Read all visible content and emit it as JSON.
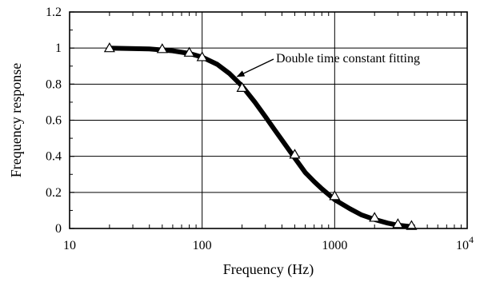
{
  "chart_data": {
    "type": "line",
    "xlabel": "Frequency (Hz)",
    "ylabel": "Frequency response",
    "x_scale": "log",
    "xlim": [
      10,
      10000
    ],
    "ylim": [
      0,
      1.2
    ],
    "grid": true,
    "x_ticks": [
      {
        "value": 10,
        "label": "10"
      },
      {
        "value": 100,
        "label": "100"
      },
      {
        "value": 1000,
        "label": "1000"
      },
      {
        "value": 10000,
        "label": "10",
        "exponent": "4"
      }
    ],
    "y_ticks": [
      {
        "value": 0,
        "label": "0"
      },
      {
        "value": 0.2,
        "label": "0.2"
      },
      {
        "value": 0.4,
        "label": "0.4"
      },
      {
        "value": 0.6,
        "label": "0.6"
      },
      {
        "value": 0.8,
        "label": "0.8"
      },
      {
        "value": 1.0,
        "label": "1"
      },
      {
        "value": 1.2,
        "label": "1.2"
      }
    ],
    "series": [
      {
        "kind": "markers",
        "marker": "open-triangle",
        "x": [
          20,
          50,
          80,
          100,
          200,
          500,
          1000,
          2000,
          3000,
          3800
        ],
        "y": [
          1.0,
          0.995,
          0.975,
          0.95,
          0.78,
          0.41,
          0.18,
          0.06,
          0.025,
          0.015
        ]
      },
      {
        "kind": "line",
        "style": "thick",
        "x": [
          20,
          40,
          60,
          80,
          100,
          130,
          160,
          200,
          250,
          300,
          350,
          400,
          500,
          600,
          700,
          800,
          1000,
          1300,
          1600,
          2000,
          2500,
          3000,
          3800
        ],
        "y": [
          1.0,
          0.995,
          0.985,
          0.97,
          0.95,
          0.91,
          0.86,
          0.79,
          0.7,
          0.62,
          0.55,
          0.49,
          0.39,
          0.31,
          0.26,
          0.22,
          0.16,
          0.11,
          0.075,
          0.05,
          0.03,
          0.018,
          0.01
        ]
      }
    ],
    "annotations": [
      {
        "text": "Double time constant fitting",
        "arrow_to": {
          "x": 160,
          "y": 0.86
        }
      }
    ]
  }
}
